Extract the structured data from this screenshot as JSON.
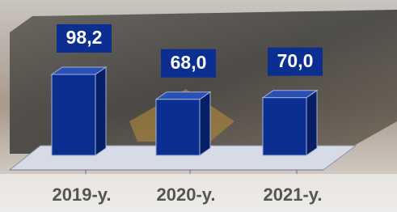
{
  "chart_data": {
    "type": "bar3d",
    "categories": [
      "2019-y.",
      "2020-y.",
      "2021-y."
    ],
    "values": [
      98.2,
      68.0,
      70.0
    ],
    "value_labels": [
      "98,2",
      "68,0",
      "70,0"
    ],
    "color": "#0b2f91"
  }
}
